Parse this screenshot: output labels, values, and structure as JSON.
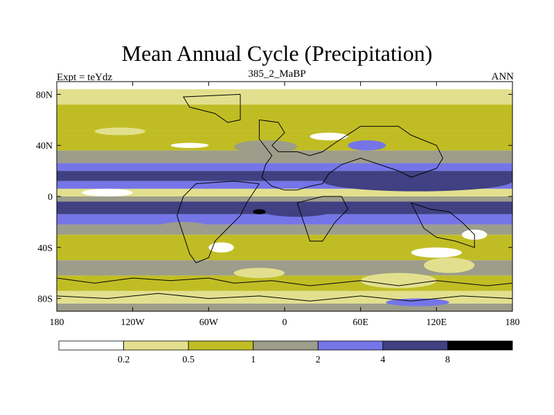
{
  "chart_data": {
    "type": "heatmap",
    "title": "Mean Annual Cycle (Precipitation)",
    "subtitle": "385_2_MaBP",
    "left_label": "Expt = teYdz",
    "right_label": "ANN",
    "x_ticks": [
      "180",
      "120W",
      "60W",
      "0",
      "60E",
      "120E",
      "180"
    ],
    "x_tick_values": [
      -180,
      -120,
      -60,
      0,
      60,
      120,
      180
    ],
    "y_ticks": [
      "80N",
      "40N",
      "0",
      "40S",
      "80S"
    ],
    "y_tick_values": [
      80,
      40,
      0,
      -40,
      -80
    ],
    "xlim": [
      -180,
      180
    ],
    "ylim": [
      -90,
      90
    ],
    "colorbar": {
      "levels": [
        "0.2",
        "0.5",
        "1",
        "2",
        "4",
        "8"
      ],
      "colors": [
        "#ffffff",
        "#e2e08e",
        "#c0bd24",
        "#9d9d8b",
        "#7575e8",
        "#404082",
        "#000000"
      ]
    },
    "bands": [
      {
        "lat": [
          90,
          84
        ],
        "level": 0
      },
      {
        "lat": [
          84,
          72
        ],
        "level": 1
      },
      {
        "lat": [
          72,
          52
        ],
        "level": 2
      },
      {
        "lat": [
          52,
          36
        ],
        "level": 2
      },
      {
        "lat": [
          36,
          26
        ],
        "level": 3
      },
      {
        "lat": [
          26,
          20
        ],
        "level": 4
      },
      {
        "lat": [
          20,
          12
        ],
        "level": 5
      },
      {
        "lat": [
          12,
          6
        ],
        "level": 4
      },
      {
        "lat": [
          6,
          0
        ],
        "level": 1
      },
      {
        "lat": [
          0,
          -4
        ],
        "level": 3
      },
      {
        "lat": [
          -4,
          -14
        ],
        "level": 5
      },
      {
        "lat": [
          -14,
          -22
        ],
        "level": 4
      },
      {
        "lat": [
          -22,
          -30
        ],
        "level": 3
      },
      {
        "lat": [
          -30,
          -50
        ],
        "level": 2
      },
      {
        "lat": [
          -50,
          -62
        ],
        "level": 3
      },
      {
        "lat": [
          -62,
          -74
        ],
        "level": 2
      },
      {
        "lat": [
          -74,
          -84
        ],
        "level": 1
      },
      {
        "lat": [
          -84,
          -90
        ],
        "level": 3
      }
    ],
    "patches": [
      {
        "lon": [
          -150,
          -110
        ],
        "lat": [
          54,
          48
        ],
        "level": 1
      },
      {
        "lon": [
          -90,
          -60
        ],
        "lat": [
          42,
          38
        ],
        "level": 0
      },
      {
        "lon": [
          20,
          50
        ],
        "lat": [
          50,
          44
        ],
        "level": 0
      },
      {
        "lon": [
          50,
          80
        ],
        "lat": [
          44,
          36
        ],
        "level": 4
      },
      {
        "lon": [
          -40,
          10
        ],
        "lat": [
          44,
          34
        ],
        "level": 3
      },
      {
        "lon": [
          30,
          180
        ],
        "lat": [
          20,
          4
        ],
        "level": 5
      },
      {
        "lon": [
          -20,
          40
        ],
        "lat": [
          -4,
          -16
        ],
        "level": 5
      },
      {
        "lon": [
          -25,
          -15
        ],
        "lat": [
          -10,
          -14
        ],
        "level": 6
      },
      {
        "lon": [
          -160,
          -120
        ],
        "lat": [
          6,
          0
        ],
        "level": 0
      },
      {
        "lon": [
          -60,
          -40
        ],
        "lat": [
          -36,
          -44
        ],
        "level": 0
      },
      {
        "lon": [
          100,
          140
        ],
        "lat": [
          -40,
          -48
        ],
        "level": 0
      },
      {
        "lon": [
          110,
          150
        ],
        "lat": [
          -48,
          -60
        ],
        "level": 1
      },
      {
        "lon": [
          140,
          160
        ],
        "lat": [
          -26,
          -34
        ],
        "level": 0
      },
      {
        "lon": [
          60,
          120
        ],
        "lat": [
          -60,
          -72
        ],
        "level": 1
      },
      {
        "lon": [
          -180,
          -120
        ],
        "lat": [
          -54,
          -62
        ],
        "level": 3
      },
      {
        "lon": [
          -40,
          0
        ],
        "lat": [
          -56,
          -64
        ],
        "level": 1
      },
      {
        "lon": [
          80,
          130
        ],
        "lat": [
          -80,
          -86
        ],
        "level": 4
      },
      {
        "lon": [
          -100,
          -60
        ],
        "lat": [
          -20,
          -28
        ],
        "level": 3
      }
    ],
    "coastlines": [
      [
        [
          -35,
          80
        ],
        [
          -35,
          60
        ],
        [
          -45,
          58
        ],
        [
          -55,
          65
        ],
        [
          -75,
          70
        ],
        [
          -80,
          78
        ],
        [
          -35,
          80
        ]
      ],
      [
        [
          -20,
          60
        ],
        [
          -5,
          58
        ],
        [
          0,
          50
        ],
        [
          -10,
          40
        ],
        [
          -5,
          35
        ],
        [
          10,
          35
        ],
        [
          20,
          32
        ],
        [
          30,
          35
        ],
        [
          40,
          42
        ],
        [
          60,
          55
        ],
        [
          90,
          55
        ],
        [
          100,
          48
        ],
        [
          120,
          40
        ],
        [
          125,
          30
        ],
        [
          120,
          22
        ],
        [
          100,
          15
        ],
        [
          90,
          20
        ],
        [
          75,
          25
        ],
        [
          60,
          30
        ],
        [
          45,
          25
        ],
        [
          35,
          18
        ],
        [
          30,
          10
        ],
        [
          20,
          8
        ],
        [
          10,
          5
        ],
        [
          0,
          5
        ],
        [
          -10,
          8
        ],
        [
          -18,
          15
        ],
        [
          -15,
          25
        ],
        [
          -10,
          32
        ],
        [
          -20,
          45
        ],
        [
          -20,
          60
        ]
      ],
      [
        [
          -20,
          10
        ],
        [
          -30,
          -5
        ],
        [
          -35,
          -15
        ],
        [
          -45,
          -25
        ],
        [
          -55,
          -35
        ],
        [
          -60,
          -48
        ],
        [
          -70,
          -52
        ],
        [
          -75,
          -45
        ],
        [
          -80,
          -30
        ],
        [
          -85,
          -15
        ],
        [
          -80,
          0
        ],
        [
          -70,
          10
        ],
        [
          -40,
          12
        ],
        [
          -20,
          10
        ]
      ],
      [
        [
          10,
          -5
        ],
        [
          15,
          -20
        ],
        [
          20,
          -35
        ],
        [
          30,
          -35
        ],
        [
          40,
          -20
        ],
        [
          50,
          -10
        ],
        [
          45,
          0
        ],
        [
          30,
          0
        ],
        [
          10,
          -5
        ]
      ],
      [
        [
          100,
          -5
        ],
        [
          115,
          -10
        ],
        [
          130,
          -12
        ],
        [
          140,
          -20
        ],
        [
          150,
          -30
        ],
        [
          150,
          -40
        ],
        [
          135,
          -35
        ],
        [
          120,
          -32
        ],
        [
          110,
          -25
        ],
        [
          105,
          -15
        ],
        [
          100,
          -5
        ]
      ],
      [
        [
          -180,
          -64
        ],
        [
          -150,
          -68
        ],
        [
          -120,
          -64
        ],
        [
          -90,
          -66
        ],
        [
          -60,
          -64
        ],
        [
          -40,
          -68
        ],
        [
          -10,
          -66
        ],
        [
          20,
          -70
        ],
        [
          60,
          -66
        ],
        [
          90,
          -70
        ],
        [
          120,
          -66
        ],
        [
          160,
          -70
        ],
        [
          180,
          -68
        ]
      ],
      [
        [
          -180,
          -78
        ],
        [
          -140,
          -80
        ],
        [
          -100,
          -76
        ],
        [
          -60,
          -80
        ],
        [
          -20,
          -78
        ],
        [
          20,
          -82
        ],
        [
          60,
          -78
        ],
        [
          100,
          -82
        ],
        [
          140,
          -78
        ],
        [
          180,
          -80
        ]
      ]
    ]
  }
}
